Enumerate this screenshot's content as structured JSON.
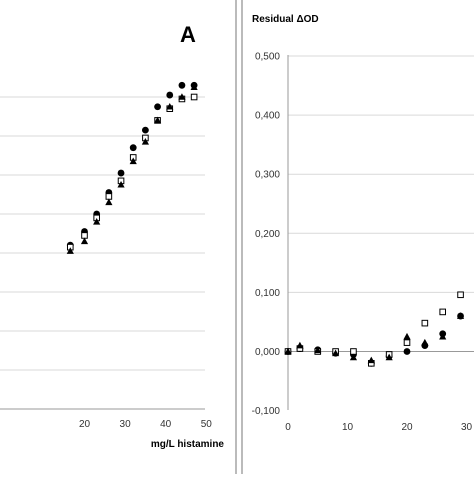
{
  "chart_data": [
    {
      "type": "scatter",
      "title": "",
      "panel_letter": "A",
      "xlabel": "mg/L histamine",
      "ylabel": "",
      "xlim": [
        0,
        50
      ],
      "x_ticks": [
        "20",
        "30",
        "40",
        "50"
      ],
      "grid": "horizontal",
      "series": [
        {
          "marker": "circle",
          "x": [
            16.5,
            20,
            23,
            26,
            29,
            32,
            35,
            38,
            41,
            44,
            47
          ],
          "y": [
            0.84,
            0.91,
            1.0,
            1.11,
            1.21,
            1.34,
            1.43,
            1.55,
            1.61,
            1.66,
            1.66
          ]
        },
        {
          "marker": "open-square",
          "x": [
            16.5,
            20,
            23,
            26,
            29,
            32,
            35,
            38,
            41,
            44,
            47
          ],
          "y": [
            0.83,
            0.89,
            0.98,
            1.09,
            1.17,
            1.29,
            1.39,
            1.48,
            1.54,
            1.59,
            1.6
          ]
        },
        {
          "marker": "triangle",
          "x": [
            16.5,
            20,
            23,
            26,
            29,
            32,
            35,
            38,
            41,
            44,
            47
          ],
          "y": [
            0.81,
            0.86,
            0.96,
            1.06,
            1.15,
            1.27,
            1.37,
            1.48,
            1.55,
            1.6,
            1.65
          ]
        }
      ]
    },
    {
      "type": "scatter",
      "title": "Residual ΔOD",
      "xlabel": "",
      "ylabel": "",
      "xlim": [
        0,
        30
      ],
      "ylim": [
        -0.1,
        0.5
      ],
      "x_ticks": [
        "0",
        "10",
        "20",
        "30"
      ],
      "y_ticks": [
        "0,500",
        "0,400",
        "0,300",
        "0,200",
        "0,100",
        "0,000",
        "-0,100"
      ],
      "grid": "horizontal",
      "series": [
        {
          "marker": "circle",
          "x": [
            0,
            2,
            5,
            8,
            11,
            14,
            17,
            20,
            23,
            26,
            29
          ],
          "y": [
            0.0,
            0.005,
            0.003,
            -0.003,
            -0.005,
            -0.02,
            -0.008,
            0.0,
            0.01,
            0.03,
            0.06
          ]
        },
        {
          "marker": "open-square",
          "x": [
            0,
            2,
            5,
            8,
            11,
            14,
            17,
            20,
            23,
            26,
            29
          ],
          "y": [
            0.0,
            0.005,
            0.0,
            0.0,
            0.0,
            -0.02,
            -0.005,
            0.015,
            0.048,
            0.067,
            0.096
          ]
        },
        {
          "marker": "triangle",
          "x": [
            0,
            2,
            5,
            8,
            11,
            14,
            17,
            20,
            23,
            26,
            29
          ],
          "y": [
            0.0,
            0.01,
            0.002,
            -0.003,
            -0.01,
            -0.015,
            -0.01,
            0.025,
            0.015,
            0.025,
            0.06
          ]
        }
      ]
    }
  ]
}
